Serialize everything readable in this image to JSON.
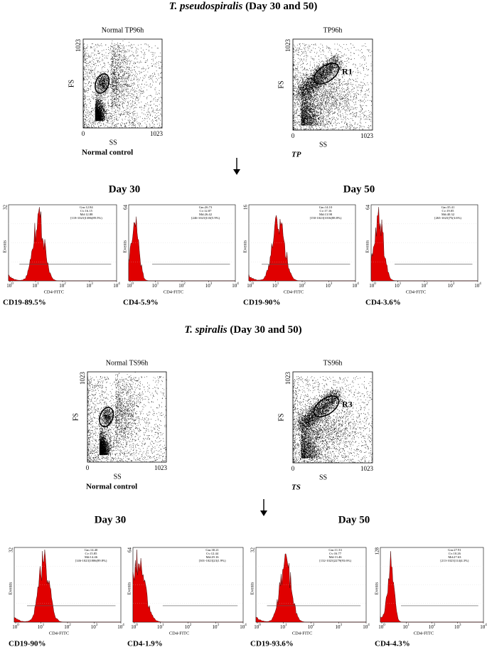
{
  "sections": [
    {
      "title_species": "T. pseudospiralis",
      "title_rest": "(Day 30 and 50)",
      "scatter_plots": [
        {
          "title": "Normal TP96h",
          "y_label": "FS",
          "x_label": "SS",
          "y_max": "1023",
          "x_min": "0",
          "x_max": "1023",
          "caption": "Normal control"
        },
        {
          "title": "TP96h",
          "gate": "R1",
          "y_label": "FS",
          "x_label": "SS",
          "y_max": "1023",
          "x_min": "0",
          "x_max": "1023",
          "caption": "TP"
        }
      ],
      "day_labels": [
        "Day 30",
        "Day 50"
      ],
      "histograms": [
        {
          "y_max": "32",
          "y_label": "Events",
          "x_label": "CD4-FITC",
          "stats": [
            "Gm:12.84",
            "Cv:16.15",
            "Md:12.88",
            "[118-1023]1386(89.5%)"
          ],
          "caption": "CD19-89.5%"
        },
        {
          "y_max": "64",
          "y_label": "Events",
          "x_label": "CD4-FITC",
          "stats": [
            "Gm:26.73",
            "Cv:12.87",
            "Md:26.42",
            "[246-1023]110(5.9%)"
          ],
          "caption": "CD4-5.9%"
        },
        {
          "y_max": "16",
          "y_label": "Events",
          "x_label": "CD4-FITC",
          "stats": [
            "Gm:14.10",
            "Cv:17.16",
            "Md:13.98",
            "[150-1023]1016(88.8%)"
          ],
          "caption": "CD19-90%"
        },
        {
          "y_max": "64",
          "y_label": "Events",
          "x_label": "CD4-FITC",
          "stats": [
            "Gm:35.41",
            "Cv:19.05",
            "Md:40.32",
            "[263-1023]75(3.6%)"
          ],
          "caption": "CD4-3.6%"
        }
      ]
    },
    {
      "title_species": "T. spiralis",
      "title_rest": "(Day 30 and 50)",
      "scatter_plots": [
        {
          "title": "Normal TS96h",
          "y_label": "FS",
          "x_label": "SS",
          "y_max": "1023",
          "x_min": "0",
          "x_max": "1023",
          "caption": "Normal control"
        },
        {
          "title": "TS96h",
          "gate": "R3",
          "y_label": "FS",
          "x_label": "SS",
          "y_max": "1023",
          "x_min": "0",
          "x_max": "1023",
          "caption": "TS"
        }
      ],
      "day_labels": [
        "Day 30",
        "Day 50"
      ],
      "histograms": [
        {
          "y_max": "32",
          "y_label": "Events",
          "x_label": "CD4-FITC",
          "stats": [
            "Gm:14.40",
            "Cv:15.85",
            "Md:14.46",
            "[146-1023]1806(89.8%)"
          ],
          "caption": "CD19-90%"
        },
        {
          "y_max": "64",
          "y_label": "Events",
          "x_label": "CD4-FITC",
          "stats": [
            "Gm:30.21",
            "Cv:12.44",
            "Md:29.16",
            "[301-1023]23(1.9%)"
          ],
          "caption": "CD4-1.9%"
        },
        {
          "y_max": "32",
          "y_label": "Events",
          "x_label": "CD4-FITC",
          "stats": [
            "Gm:11.33",
            "Cv:16.77",
            "Md:13.46",
            "[132-1023]2279(93.6%)"
          ],
          "caption": "CD19-93.6%"
        },
        {
          "y_max": "128",
          "y_label": "Events",
          "x_label": "CD4-FITC",
          "stats": [
            "Gm:27.91",
            "Cv:10.26",
            "Md:27.63",
            "[213-1023]114(4.3%)"
          ],
          "caption": "CD4-4.3%"
        }
      ]
    }
  ],
  "hist_xticks": [
    {
      "base": "10",
      "exp": "0"
    },
    {
      "base": "10",
      "exp": "1"
    },
    {
      "base": "10",
      "exp": "2"
    },
    {
      "base": "10",
      "exp": "3"
    },
    {
      "base": "10",
      "exp": "4"
    }
  ]
}
